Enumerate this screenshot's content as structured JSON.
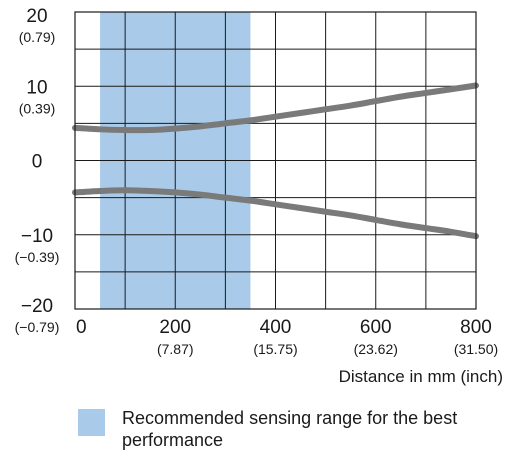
{
  "chart_data": {
    "type": "line",
    "x": {
      "ticks": [
        0,
        200,
        400,
        600,
        800
      ],
      "tick_labels": [
        "0",
        "200",
        "400",
        "600",
        "800"
      ],
      "tick_sublabels": [
        "",
        "(7.87)",
        "(15.75)",
        "(23.62)",
        "(31.50)"
      ],
      "range": [
        0,
        800
      ],
      "label": "Distance in mm (inch)"
    },
    "y": {
      "ticks": [
        20,
        10,
        0,
        -10,
        -20
      ],
      "tick_labels": [
        "20",
        "10",
        "0",
        "−10",
        "−20"
      ],
      "tick_sublabels": [
        "(0.79)",
        "(0.39)",
        "",
        "(−0.39)",
        "(−0.79)"
      ],
      "range": [
        -20,
        20
      ]
    },
    "grid": true,
    "series": [
      {
        "x": [
          0,
          50,
          100,
          150,
          200,
          250,
          300,
          350,
          400,
          450,
          500,
          550,
          600,
          650,
          700,
          750,
          800
        ],
        "y": [
          4.4,
          4.2,
          4.1,
          4.1,
          4.3,
          4.6,
          5.0,
          5.4,
          5.9,
          6.4,
          6.9,
          7.4,
          8.0,
          8.6,
          9.1,
          9.6,
          10.1
        ]
      },
      {
        "x": [
          0,
          50,
          100,
          150,
          200,
          250,
          300,
          350,
          400,
          450,
          500,
          550,
          600,
          650,
          700,
          750,
          800
        ],
        "y": [
          -4.3,
          -4.1,
          -4.0,
          -4.1,
          -4.3,
          -4.6,
          -5.0,
          -5.4,
          -5.9,
          -6.4,
          -6.9,
          -7.4,
          -8.0,
          -8.6,
          -9.1,
          -9.6,
          -10.2
        ]
      }
    ],
    "shaded_region": {
      "x_start": 50,
      "x_end": 350,
      "color": "#a9cbe9"
    },
    "line_color": "#7a7a7a",
    "legend": {
      "label": "Recommended sensing range for the best performance",
      "color": "#a9cbe9"
    }
  }
}
